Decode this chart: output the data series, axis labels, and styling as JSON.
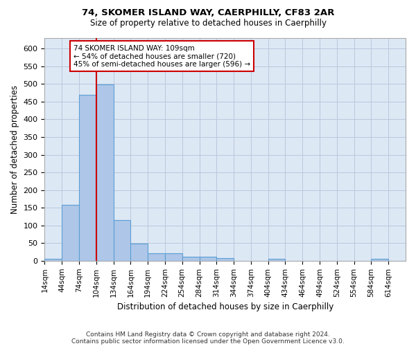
{
  "title1": "74, SKOMER ISLAND WAY, CAERPHILLY, CF83 2AR",
  "title2": "Size of property relative to detached houses in Caerphilly",
  "xlabel": "Distribution of detached houses by size in Caerphilly",
  "ylabel": "Number of detached properties",
  "categories": [
    "14sqm",
    "44sqm",
    "74sqm",
    "104sqm",
    "134sqm",
    "164sqm",
    "194sqm",
    "224sqm",
    "254sqm",
    "284sqm",
    "314sqm",
    "344sqm",
    "374sqm",
    "404sqm",
    "434sqm",
    "464sqm",
    "494sqm",
    "524sqm",
    "554sqm",
    "584sqm",
    "614sqm"
  ],
  "bar_heights": [
    5,
    158,
    470,
    498,
    115,
    48,
    22,
    22,
    12,
    12,
    8,
    0,
    0,
    5,
    0,
    0,
    0,
    0,
    0,
    5,
    0
  ],
  "bar_color": "#aec6e8",
  "bar_edgecolor": "#5a9fd4",
  "vline_x_bin": 3,
  "vline_color": "#cc0000",
  "annotation_line1": "74 SKOMER ISLAND WAY: 109sqm",
  "annotation_line2": "← 54% of detached houses are smaller (720)",
  "annotation_line3": "45% of semi-detached houses are larger (596) →",
  "annotation_box_color": "#ffffff",
  "annotation_box_edgecolor": "#cc0000",
  "ylim": [
    0,
    630
  ],
  "yticks": [
    0,
    50,
    100,
    150,
    200,
    250,
    300,
    350,
    400,
    450,
    500,
    550,
    600
  ],
  "footer_line1": "Contains HM Land Registry data © Crown copyright and database right 2024.",
  "footer_line2": "Contains public sector information licensed under the Open Government Licence v3.0.",
  "background_color": "#ffffff",
  "plot_bg_color": "#dde8f5",
  "grid_color": "#b8c8dc"
}
